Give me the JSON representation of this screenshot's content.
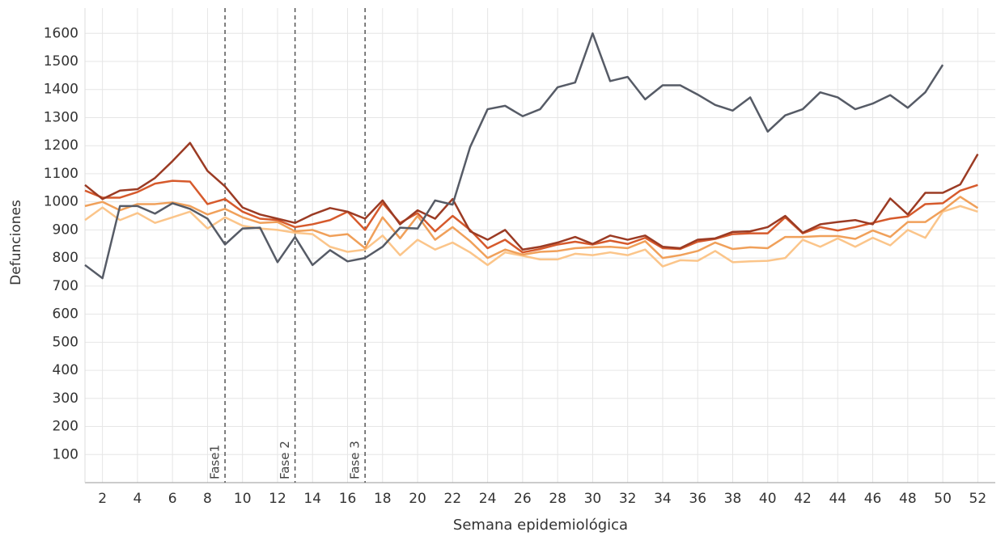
{
  "chart_data": {
    "type": "line",
    "x_label": "Semana epidemiológica",
    "y_label": "Defunciones",
    "x": [
      1,
      2,
      3,
      4,
      5,
      6,
      7,
      8,
      9,
      10,
      11,
      12,
      13,
      14,
      15,
      16,
      17,
      18,
      19,
      20,
      21,
      22,
      23,
      24,
      25,
      26,
      27,
      28,
      29,
      30,
      31,
      32,
      33,
      34,
      35,
      36,
      37,
      38,
      39,
      40,
      41,
      42,
      43,
      44,
      45,
      46,
      47,
      48,
      49,
      50,
      51,
      52
    ],
    "xlim": [
      1,
      53
    ],
    "xticks": [
      2,
      4,
      6,
      8,
      10,
      12,
      14,
      16,
      18,
      20,
      22,
      24,
      26,
      28,
      30,
      32,
      34,
      36,
      38,
      40,
      42,
      44,
      46,
      48,
      50,
      52
    ],
    "ylim": [
      0,
      1690
    ],
    "yticks": [
      100,
      200,
      300,
      400,
      500,
      600,
      700,
      800,
      900,
      1000,
      1100,
      1200,
      1300,
      1400,
      1500,
      1600
    ],
    "grid": true,
    "annotations": [
      {
        "x": 9,
        "text": "Fase1"
      },
      {
        "x": 13,
        "text": "Fase 2"
      },
      {
        "x": 17,
        "text": "Fase 3"
      }
    ],
    "series": [
      {
        "color": "#fbc58a",
        "values": [
          935,
          980,
          935,
          960,
          925,
          945,
          965,
          905,
          945,
          915,
          905,
          900,
          890,
          885,
          840,
          822,
          830,
          880,
          810,
          865,
          830,
          855,
          820,
          775,
          820,
          808,
          795,
          795,
          815,
          810,
          820,
          810,
          830,
          770,
          792,
          790,
          825,
          785,
          788,
          790,
          800,
          865,
          840,
          870,
          840,
          872,
          845,
          900,
          872,
          965,
          985,
          965
        ]
      },
      {
        "color": "#f0a05a",
        "values": [
          985,
          1000,
          970,
          992,
          992,
          998,
          985,
          955,
          975,
          945,
          925,
          928,
          895,
          900,
          878,
          885,
          835,
          945,
          870,
          950,
          865,
          910,
          860,
          800,
          830,
          812,
          822,
          825,
          835,
          838,
          840,
          835,
          860,
          800,
          810,
          825,
          855,
          832,
          838,
          835,
          875,
          875,
          878,
          878,
          868,
          898,
          875,
          928,
          928,
          970,
          1018,
          978
        ]
      },
      {
        "color": "#d65a2c",
        "values": [
          1040,
          1015,
          1015,
          1035,
          1065,
          1075,
          1072,
          992,
          1010,
          965,
          940,
          935,
          910,
          920,
          935,
          965,
          900,
          995,
          925,
          960,
          895,
          950,
          900,
          835,
          865,
          820,
          832,
          848,
          858,
          848,
          862,
          850,
          872,
          835,
          832,
          858,
          868,
          885,
          888,
          888,
          945,
          888,
          910,
          898,
          910,
          925,
          940,
          948,
          992,
          995,
          1040,
          1060
        ]
      },
      {
        "color": "#9b3b24",
        "values": [
          1060,
          1010,
          1040,
          1045,
          1085,
          1145,
          1210,
          1110,
          1055,
          980,
          955,
          940,
          925,
          955,
          978,
          965,
          940,
          1005,
          920,
          970,
          940,
          1010,
          895,
          865,
          900,
          830,
          840,
          855,
          875,
          850,
          880,
          865,
          880,
          840,
          835,
          865,
          870,
          893,
          895,
          910,
          950,
          890,
          920,
          928,
          935,
          920,
          1012,
          955,
          1032,
          1032,
          1062,
          1170
        ]
      },
      {
        "color": "#565b66",
        "values": [
          775,
          728,
          985,
          985,
          958,
          995,
          975,
          940,
          848,
          905,
          908,
          785,
          875,
          775,
          828,
          788,
          800,
          840,
          908,
          905,
          1005,
          990,
          1195,
          1330,
          1342,
          1305,
          1330,
          1408,
          1425,
          1600,
          1430,
          1445,
          1365,
          1415,
          1415,
          1382,
          1345,
          1325,
          1372,
          1250,
          1308,
          1330,
          1390,
          1372,
          1330,
          1350,
          1380,
          1335,
          1390,
          1488,
          null,
          null
        ]
      }
    ]
  }
}
